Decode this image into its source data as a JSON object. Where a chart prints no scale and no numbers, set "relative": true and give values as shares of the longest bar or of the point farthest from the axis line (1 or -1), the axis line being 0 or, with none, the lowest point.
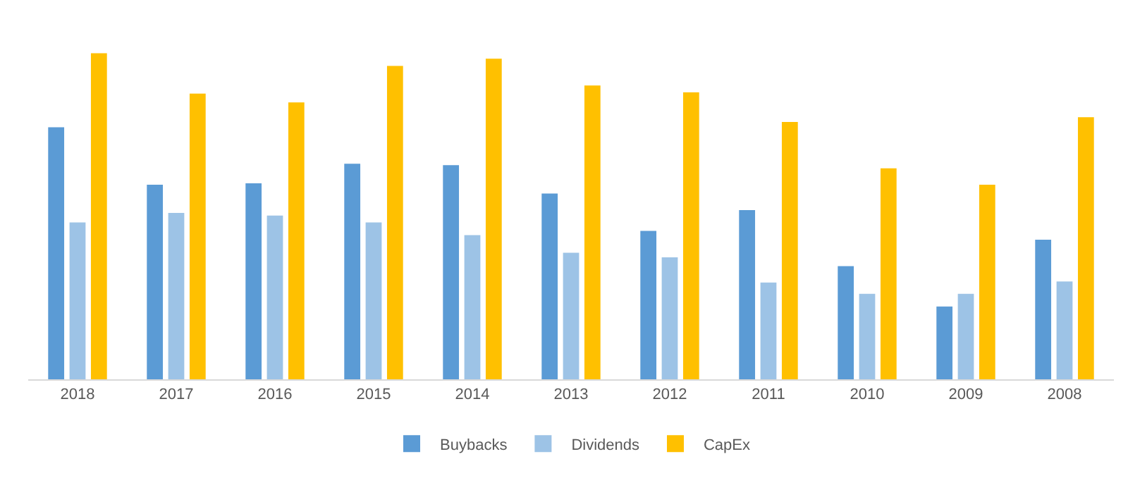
{
  "chart_data": {
    "type": "bar",
    "relative": true,
    "legend": "bottom",
    "categories": [
      "2018",
      "2017",
      "2016",
      "2015",
      "2014",
      "2013",
      "2012",
      "2011",
      "2010",
      "2009",
      "2008"
    ],
    "series": [
      {
        "name": "Buybacks",
        "color": "#5b9bd5",
        "values": [
          0.773,
          0.597,
          0.601,
          0.661,
          0.657,
          0.57,
          0.455,
          0.519,
          0.347,
          0.223,
          0.428
        ]
      },
      {
        "name": "Dividends",
        "color": "#9dc3e6",
        "values": [
          0.481,
          0.51,
          0.502,
          0.481,
          0.442,
          0.388,
          0.374,
          0.297,
          0.262,
          0.262,
          0.3
        ]
      },
      {
        "name": "CapEx",
        "color": "#ffc000",
        "values": [
          1,
          0.876,
          0.849,
          0.961,
          0.983,
          0.901,
          0.88,
          0.789,
          0.647,
          0.597,
          0.804
        ]
      }
    ]
  }
}
